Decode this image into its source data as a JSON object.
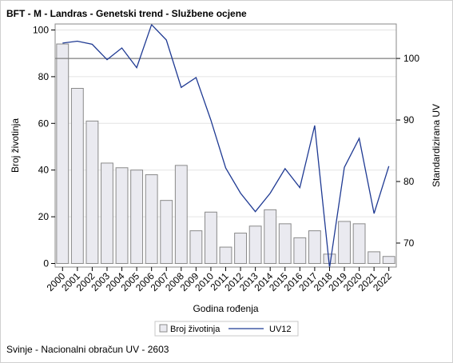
{
  "title": "BFT - M - Landras - Genetski trend - Službene ocjene",
  "footnote": "Svinje - Nacionalni obračun UV - 2603",
  "chart_data": {
    "type": "bar",
    "categories": [
      "2000",
      "2001",
      "2002",
      "2003",
      "2004",
      "2005",
      "2006",
      "2007",
      "2008",
      "2009",
      "2010",
      "2011",
      "2012",
      "2013",
      "2014",
      "2015",
      "2016",
      "2017",
      "2018",
      "2019",
      "2020",
      "2021",
      "2022"
    ],
    "series": [
      {
        "name": "Broj životinja",
        "type": "bar",
        "axis": "left",
        "values": [
          94,
          75,
          61,
          43,
          41,
          40,
          38,
          27,
          42,
          14,
          22,
          7,
          13,
          16,
          23,
          17,
          11,
          14,
          4,
          18,
          17,
          5,
          3
        ]
      },
      {
        "name": "UV12",
        "type": "line",
        "axis": "right",
        "values": [
          102.5,
          102.8,
          102.3,
          99.8,
          101.7,
          98.5,
          105.5,
          103.0,
          95.3,
          96.9,
          90.0,
          82.2,
          78.1,
          75.1,
          78.1,
          82.1,
          79.0,
          89.1,
          66.0,
          82.3,
          87.0,
          74.8,
          82.5
        ]
      }
    ],
    "xlabel": "Godina rođenja",
    "ylabel": "Broj životinja",
    "y2label": "Standardizirana UV",
    "ylim": [
      0,
      100
    ],
    "yticks": [
      0,
      20,
      40,
      60,
      80,
      100
    ],
    "y2lim": [
      66.1,
      105.6
    ],
    "y2ticks": [
      70,
      80,
      90,
      100
    ],
    "reference_line_y2": 100,
    "grid": true,
    "legend_position": "bottom",
    "colors": {
      "bar_fill": "#eaeaf0",
      "bar_stroke": "#8a8a8a",
      "line": "#1f3a93",
      "grid": "#e4e4e4",
      "refline": "#7f7f7f"
    }
  }
}
